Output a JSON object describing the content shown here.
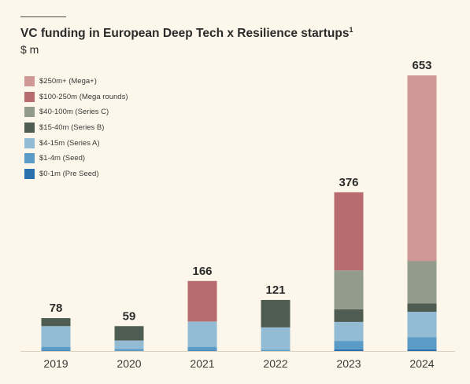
{
  "header": {
    "title": "VC funding in European Deep Tech x Resilience startups",
    "footnote_marker": "1",
    "subtitle": "$ m"
  },
  "chart_data": {
    "type": "bar",
    "stacked": true,
    "title": "VC funding in European Deep Tech x Resilience startups",
    "ylabel": "$ m",
    "ylim": [
      0,
      653
    ],
    "categories": [
      "2019",
      "2020",
      "2021",
      "2022",
      "2023",
      "2024"
    ],
    "totals": [
      78,
      59,
      166,
      121,
      376,
      653
    ],
    "legend_position": "top-left",
    "series": [
      {
        "name": "$0-1m (Pre Seed)",
        "color": "#2a6fae",
        "values": [
          1,
          0,
          1,
          0,
          4,
          4
        ]
      },
      {
        "name": "$1-4m (Seed)",
        "color": "#5b9bc8",
        "values": [
          9,
          5,
          9,
          3,
          20,
          29
        ]
      },
      {
        "name": "$4-15m (Series A)",
        "color": "#93bbd3",
        "values": [
          49,
          20,
          60,
          53,
          45,
          60
        ]
      },
      {
        "name": "$15-40m (Series B)",
        "color": "#4f5c52",
        "values": [
          19,
          34,
          0,
          65,
          30,
          20
        ]
      },
      {
        "name": "$40-100m (Series C)",
        "color": "#929b8c",
        "values": [
          0,
          0,
          0,
          0,
          92,
          100
        ]
      },
      {
        "name": "$100-250m (Mega rounds)",
        "color": "#b96c6e",
        "values": [
          0,
          0,
          96,
          0,
          185,
          0
        ]
      },
      {
        "name": "$250m+ (Mega+)",
        "color": "#cf9796",
        "values": [
          0,
          0,
          0,
          0,
          0,
          440
        ]
      }
    ]
  }
}
